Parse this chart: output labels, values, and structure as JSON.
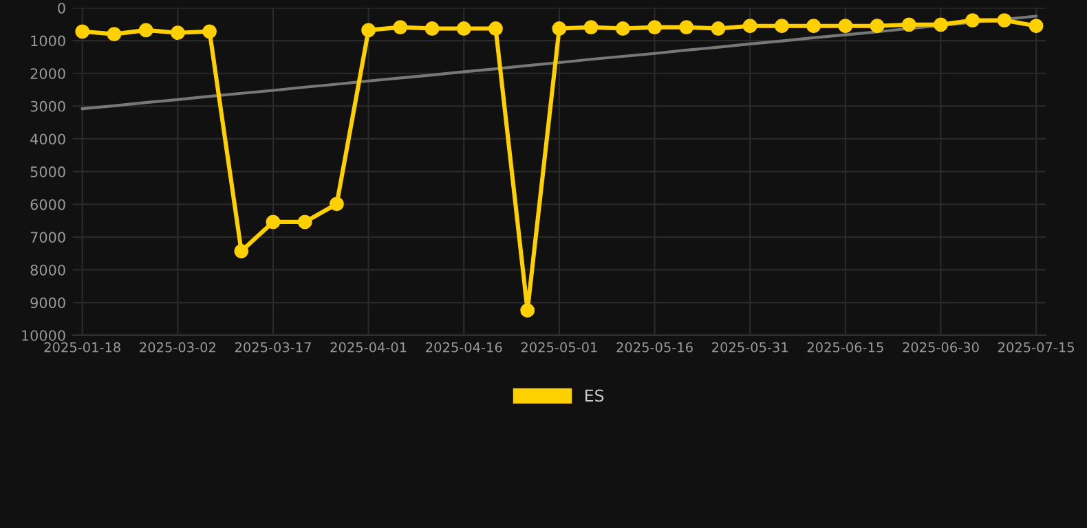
{
  "chart_data": {
    "type": "line",
    "categories": [
      "2025-01-18",
      null,
      null,
      "2025-03-02",
      null,
      null,
      "2025-03-17",
      null,
      null,
      "2025-04-01",
      null,
      null,
      "2025-04-16",
      null,
      null,
      "2025-05-01",
      null,
      null,
      "2025-05-16",
      null,
      null,
      "2025-05-31",
      null,
      null,
      "2025-06-15",
      null,
      null,
      "2025-06-30",
      null,
      null,
      "2025-07-15"
    ],
    "series": [
      {
        "name": "ES",
        "color": "#ffd000",
        "marker": "circle",
        "values": [
          720,
          800,
          680,
          760,
          720,
          7430,
          6540,
          6540,
          5990,
          680,
          590,
          630,
          630,
          630,
          9240,
          630,
          590,
          630,
          590,
          590,
          630,
          550,
          550,
          550,
          550,
          550,
          510,
          510,
          380,
          380,
          550
        ]
      },
      {
        "type": "line",
        "color": "#777777",
        "marker": "none",
        "values": [
          3080,
          2990,
          2890,
          2800,
          2700,
          2610,
          2520,
          2420,
          2330,
          2230,
          2140,
          2050,
          1950,
          1860,
          1760,
          1670,
          1570,
          1480,
          1390,
          1290,
          1200,
          1100,
          1010,
          910,
          820,
          730,
          630,
          540,
          440,
          350,
          250
        ]
      }
    ],
    "ylim": [
      10000,
      0
    ],
    "yticks": [
      0,
      1000,
      2000,
      3000,
      4000,
      5000,
      6000,
      7000,
      8000,
      9000,
      10000
    ],
    "grid": true,
    "legend": "bottom"
  }
}
